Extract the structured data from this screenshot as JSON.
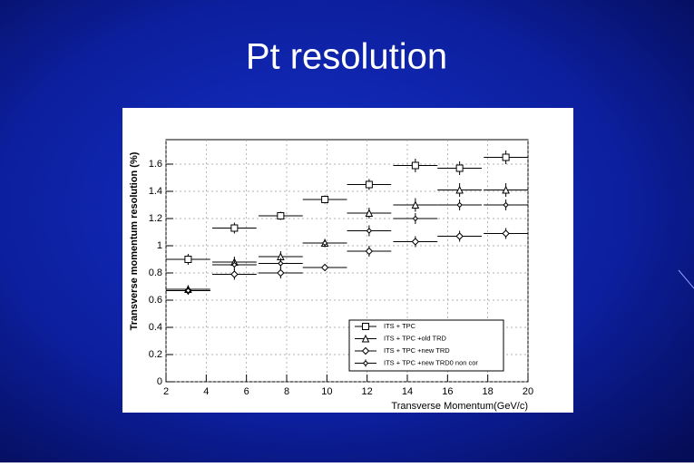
{
  "chart_data": {
    "type": "errorbar",
    "title": "Pt resolution",
    "x_label": "Transverse Momentum(GeV/c)",
    "y_label": "Transverse momentum resolution (%)",
    "xlim": [
      2,
      20
    ],
    "xticks": [
      2,
      4,
      6,
      8,
      10,
      12,
      14,
      16,
      18,
      20
    ],
    "ylim": [
      0,
      1.78
    ],
    "yticks": [
      0,
      0.2,
      0.4,
      0.6,
      0.8,
      1,
      1.2,
      1.4,
      1.6
    ],
    "grid": true,
    "legend": "lower right",
    "x": [
      3.1,
      5.4,
      7.7,
      9.9,
      12.1,
      14.4,
      16.6,
      18.9
    ],
    "xerr": [
      1.1,
      1.1,
      1.1,
      1.1,
      1.1,
      1.1,
      1.1,
      1.1
    ],
    "series": [
      {
        "name": "ITS + TPC",
        "color": "#000000",
        "marker": "square",
        "values": [
          0.9,
          1.13,
          1.22,
          1.34,
          1.45,
          1.59,
          1.57,
          1.65
        ],
        "yerr": [
          0.04,
          0.04,
          0.03,
          0.03,
          0.04,
          0.05,
          0.05,
          0.05
        ]
      },
      {
        "name": "ITS + TPC +old TRD",
        "color": "#000000",
        "marker": "triangle",
        "values": [
          0.68,
          0.88,
          0.92,
          1.02,
          1.24,
          1.3,
          1.41,
          1.41
        ],
        "yerr": [
          0.03,
          0.04,
          0.04,
          0.03,
          0.04,
          0.05,
          0.05,
          0.05
        ]
      },
      {
        "name": "ITS + TPC +new TRD",
        "color": "#000000",
        "marker": "diamond",
        "values": [
          0.67,
          0.79,
          0.8,
          0.84,
          0.96,
          1.03,
          1.07,
          1.09
        ],
        "yerr": [
          0.03,
          0.04,
          0.04,
          0.02,
          0.04,
          0.04,
          0.04,
          0.04
        ]
      },
      {
        "name": "ITS + TPC +new TRD0 non cor",
        "color": "#000000",
        "marker": "cross",
        "values": [
          0.67,
          0.86,
          0.87,
          1.02,
          1.11,
          1.2,
          1.3,
          1.3
        ],
        "yerr": [
          0.03,
          0.04,
          0.04,
          0.03,
          0.04,
          0.04,
          0.04,
          0.04
        ]
      }
    ]
  }
}
